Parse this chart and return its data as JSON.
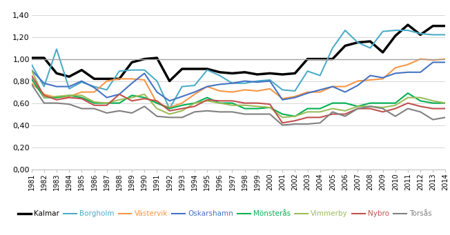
{
  "years": [
    1981,
    1982,
    1983,
    1984,
    1985,
    1986,
    1987,
    1988,
    1989,
    1990,
    1991,
    1992,
    1993,
    1994,
    1995,
    1996,
    1997,
    1998,
    1999,
    2000,
    2001,
    2002,
    2003,
    2004,
    2005,
    2006,
    2007,
    2008,
    2009,
    2010,
    2011,
    2012,
    2013,
    2014
  ],
  "series": {
    "Kalmar": [
      1.01,
      1.01,
      0.87,
      0.84,
      0.9,
      0.82,
      0.82,
      0.82,
      0.97,
      1.0,
      1.01,
      0.8,
      0.91,
      0.91,
      0.91,
      0.88,
      0.87,
      0.88,
      0.86,
      0.87,
      0.86,
      0.87,
      1.0,
      1.0,
      1.0,
      1.12,
      1.15,
      1.16,
      1.06,
      1.21,
      1.31,
      1.22,
      1.3,
      1.3
    ],
    "Borgholm": [
      0.95,
      0.75,
      1.09,
      0.73,
      0.79,
      0.75,
      0.72,
      0.89,
      0.9,
      0.9,
      0.8,
      0.55,
      0.75,
      0.76,
      0.9,
      0.85,
      0.78,
      0.78,
      0.8,
      0.81,
      0.72,
      0.71,
      0.89,
      0.85,
      1.1,
      1.26,
      1.15,
      1.1,
      1.25,
      1.26,
      1.26,
      1.23,
      1.22,
      1.22
    ],
    "Västervik": [
      0.78,
      0.68,
      0.65,
      0.66,
      0.7,
      0.7,
      0.8,
      0.82,
      0.82,
      0.81,
      0.6,
      0.56,
      0.6,
      0.68,
      0.75,
      0.71,
      0.7,
      0.72,
      0.71,
      0.73,
      0.64,
      0.66,
      0.7,
      0.7,
      0.75,
      0.75,
      0.8,
      0.81,
      0.82,
      0.92,
      0.95,
      1.0,
      0.99,
      1.0
    ],
    "Oskarshamn": [
      0.9,
      0.78,
      0.75,
      0.75,
      0.8,
      0.74,
      0.65,
      0.68,
      0.78,
      0.87,
      0.7,
      0.62,
      0.66,
      0.7,
      0.75,
      0.77,
      0.78,
      0.8,
      0.79,
      0.8,
      0.63,
      0.65,
      0.69,
      0.72,
      0.75,
      0.7,
      0.76,
      0.85,
      0.83,
      0.87,
      0.88,
      0.88,
      0.97,
      0.97
    ],
    "Mönsterås": [
      0.82,
      0.65,
      0.65,
      0.67,
      0.65,
      0.6,
      0.6,
      0.6,
      0.67,
      0.65,
      0.6,
      0.55,
      0.58,
      0.6,
      0.65,
      0.6,
      0.6,
      0.55,
      0.55,
      0.56,
      0.5,
      0.48,
      0.55,
      0.55,
      0.6,
      0.6,
      0.57,
      0.6,
      0.6,
      0.6,
      0.69,
      0.62,
      0.6,
      0.6
    ],
    "Vimmerby": [
      0.9,
      0.65,
      0.66,
      0.67,
      0.67,
      0.61,
      0.6,
      0.63,
      0.65,
      0.68,
      0.55,
      0.5,
      0.53,
      0.6,
      0.62,
      0.6,
      0.58,
      0.58,
      0.57,
      0.56,
      0.47,
      0.48,
      0.52,
      0.52,
      0.55,
      0.53,
      0.57,
      0.57,
      0.56,
      0.58,
      0.65,
      0.65,
      0.62,
      0.6
    ],
    "Nybro": [
      0.85,
      0.67,
      0.63,
      0.65,
      0.64,
      0.58,
      0.58,
      0.68,
      0.62,
      0.64,
      0.62,
      0.53,
      0.55,
      0.57,
      0.63,
      0.62,
      0.62,
      0.6,
      0.6,
      0.59,
      0.42,
      0.44,
      0.47,
      0.47,
      0.5,
      0.5,
      0.55,
      0.55,
      0.52,
      0.55,
      0.6,
      0.57,
      0.55,
      0.55
    ],
    "Torsås": [
      0.77,
      0.6,
      0.6,
      0.59,
      0.55,
      0.55,
      0.51,
      0.53,
      0.51,
      0.57,
      0.48,
      0.47,
      0.47,
      0.52,
      0.53,
      0.52,
      0.52,
      0.5,
      0.5,
      0.5,
      0.4,
      0.41,
      0.41,
      0.42,
      0.52,
      0.48,
      0.55,
      0.57,
      0.55,
      0.48,
      0.55,
      0.52,
      0.45,
      0.47
    ]
  },
  "colors": {
    "Kalmar": "#000000",
    "Borgholm": "#4BACC6",
    "Västervik": "#F79646",
    "Oskarshamn": "#4472C4",
    "Mönsterås": "#00B050",
    "Vimmerby": "#9BBB59",
    "Nybro": "#C0504D",
    "Torsås": "#808080"
  },
  "linewidths": {
    "Kalmar": 2.5,
    "Borgholm": 1.5,
    "Västervik": 1.5,
    "Oskarshamn": 1.5,
    "Mönsterås": 1.5,
    "Vimmerby": 1.5,
    "Nybro": 1.5,
    "Torsås": 1.5
  },
  "ylim": [
    0.0,
    1.45
  ],
  "yticks": [
    0.0,
    0.2,
    0.4,
    0.6,
    0.8,
    1.0,
    1.2,
    1.4
  ],
  "reference_line": 1.0,
  "background_color": "#FFFFFF",
  "legend_order": [
    "Kalmar",
    "Borgholm",
    "Västervik",
    "Oskarshamn",
    "Mönsterås",
    "Vimmerby",
    "Nybro",
    "Torsås"
  ]
}
